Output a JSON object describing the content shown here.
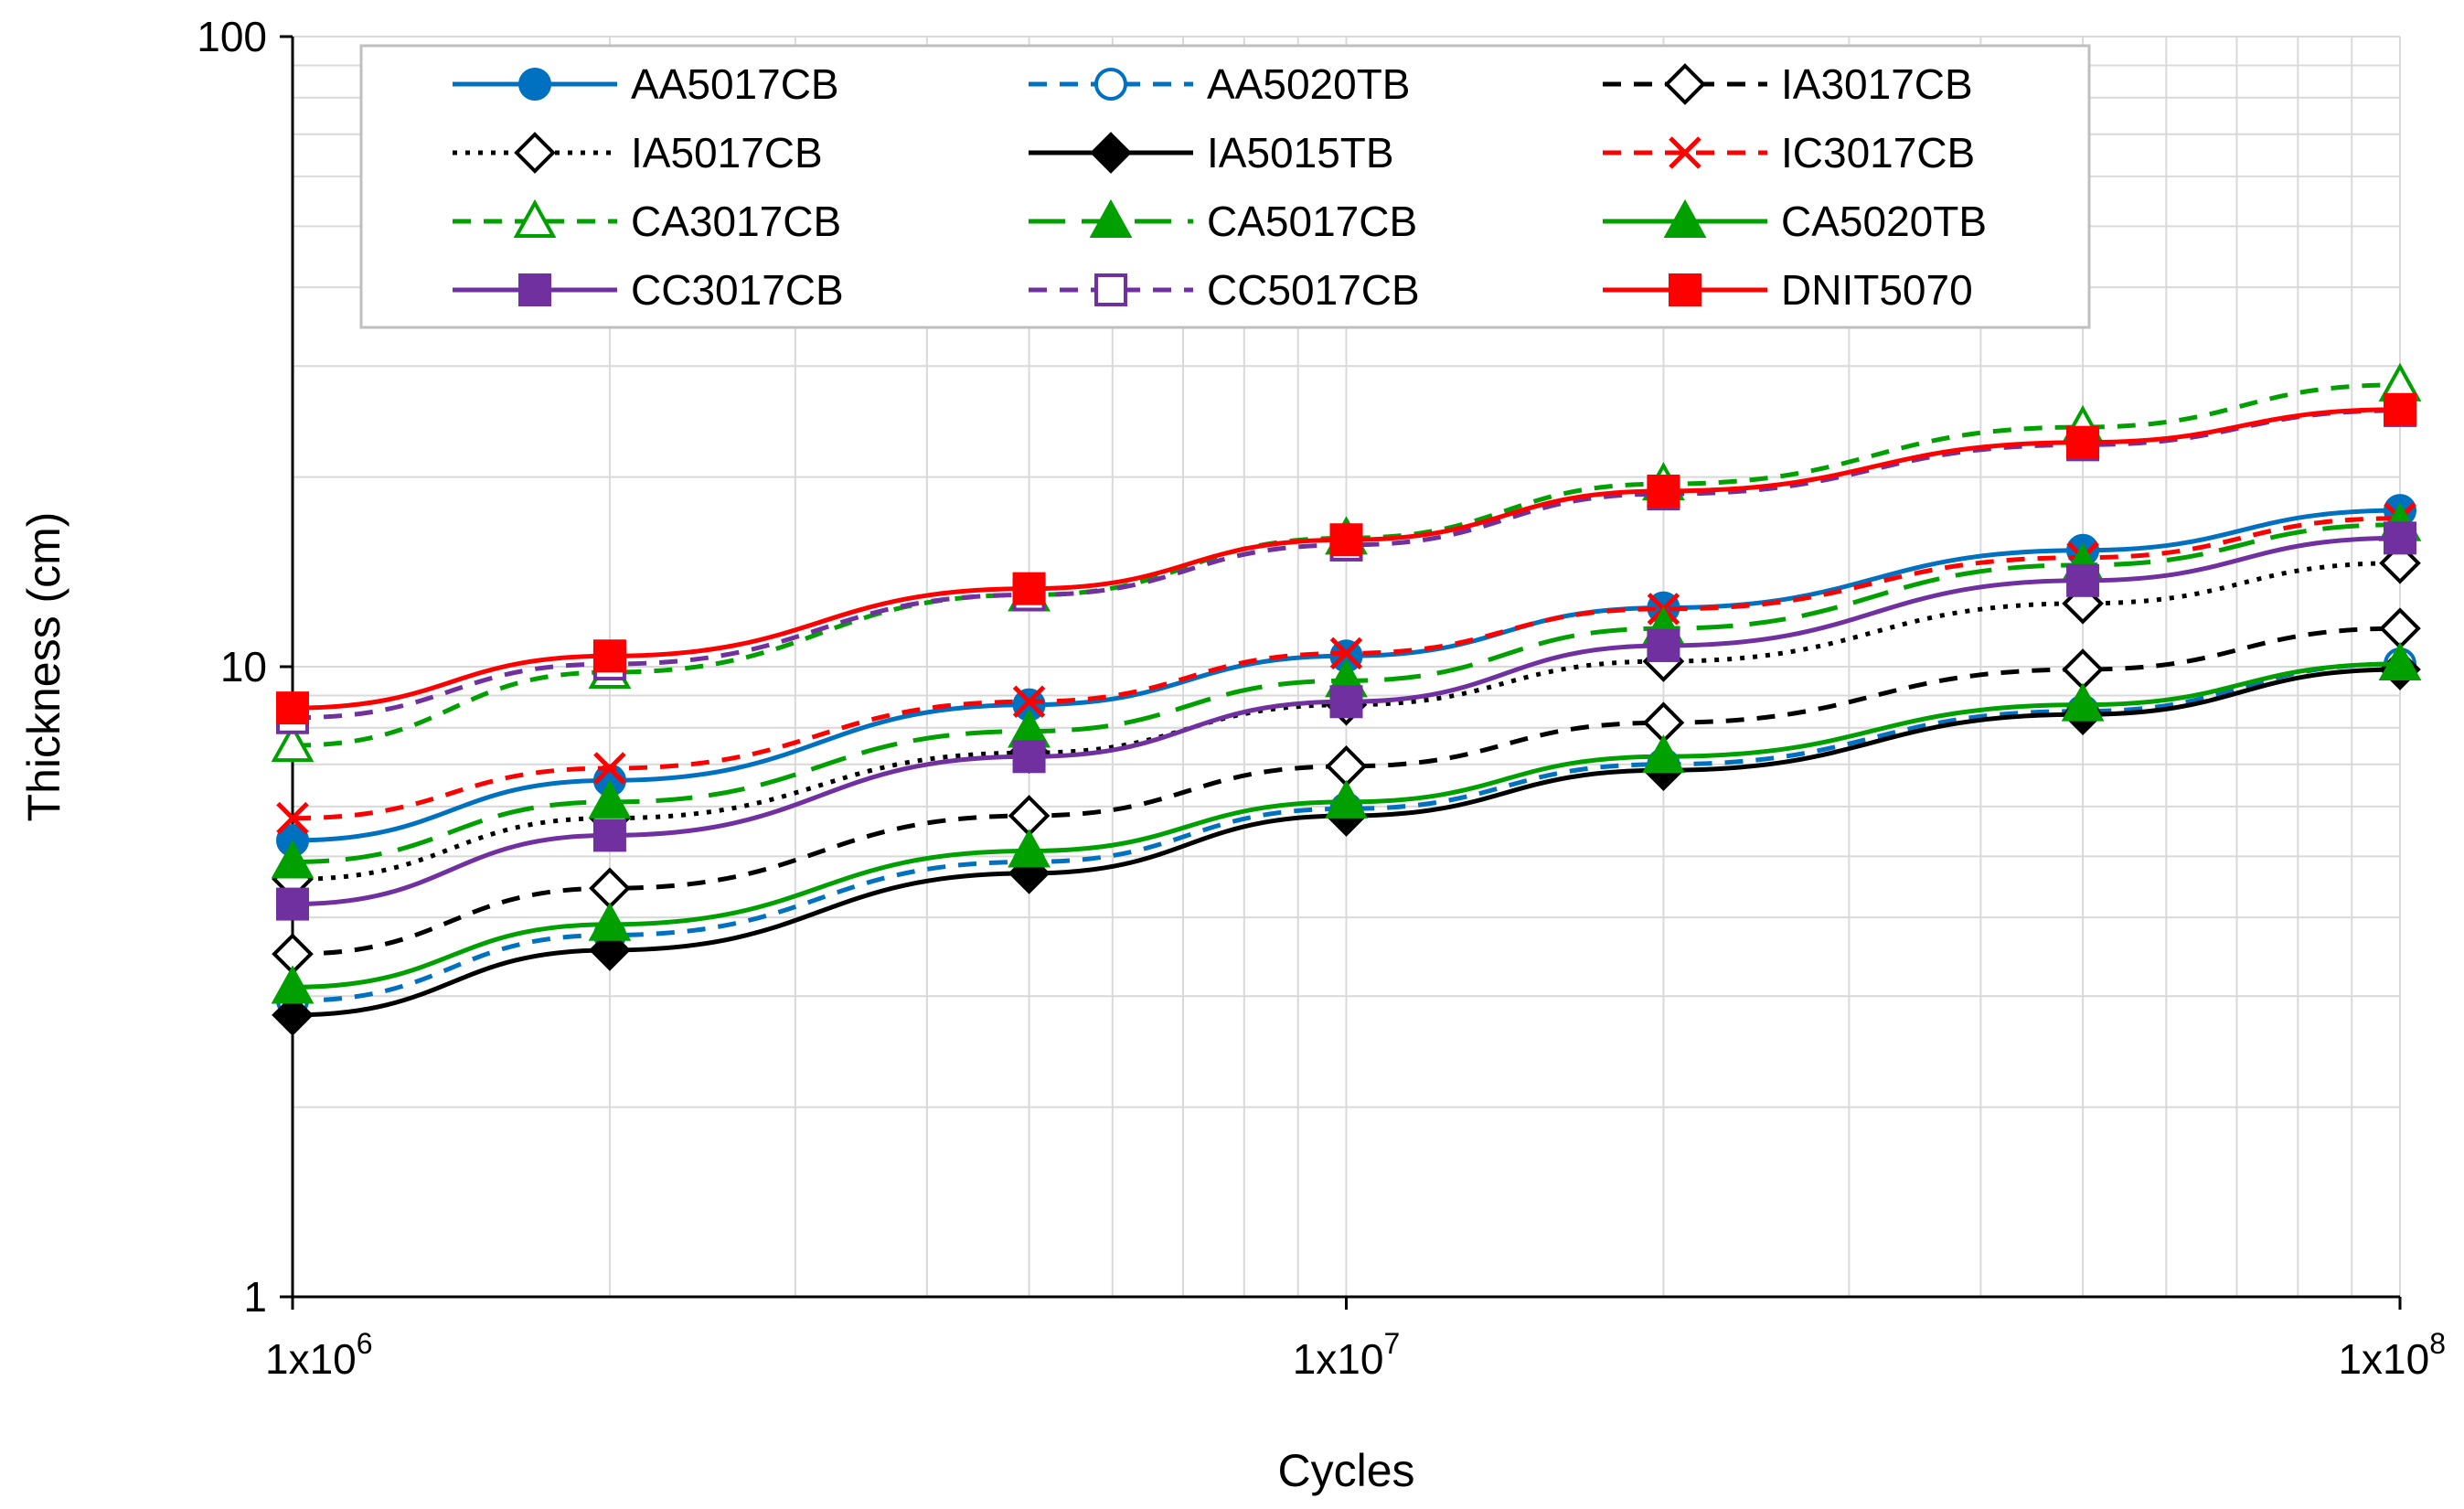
{
  "chart_data": {
    "type": "line",
    "xscale": "log",
    "yscale": "log",
    "x": [
      1000000,
      2000000,
      5000000,
      10000000,
      20000000,
      50000000,
      100000000
    ],
    "xlim": [
      1000000,
      100000000
    ],
    "ylim": [
      1,
      100
    ],
    "xlabel": "Cycles",
    "ylabel": "Thickness (cm)",
    "xticks": [
      {
        "value": 1000000,
        "base": "1x10",
        "exp": "6"
      },
      {
        "value": 10000000,
        "base": "1x10",
        "exp": "7"
      },
      {
        "value": 100000000,
        "base": "1x10",
        "exp": "8"
      }
    ],
    "yticks": [
      {
        "value": 1,
        "label": "1"
      },
      {
        "value": 10,
        "label": "10"
      },
      {
        "value": 100,
        "label": "100"
      }
    ],
    "grid": true,
    "legend_position": "top",
    "series": [
      {
        "name": "AA5017CB",
        "color": "#0070C0",
        "dash": "solid",
        "marker": "circle",
        "filled": true,
        "values": [
          5.3,
          6.6,
          8.7,
          10.4,
          12.4,
          15.3,
          17.7
        ]
      },
      {
        "name": "AA5020TB",
        "color": "#0070C0",
        "dash": "dashed",
        "marker": "circle",
        "filled": false,
        "values": [
          2.95,
          3.75,
          4.9,
          5.95,
          7.0,
          8.5,
          10.1
        ]
      },
      {
        "name": "IA3017CB",
        "color": "#000000",
        "dash": "dashed",
        "marker": "diamond",
        "filled": false,
        "values": [
          3.5,
          4.45,
          5.8,
          6.95,
          8.15,
          9.9,
          11.5
        ]
      },
      {
        "name": "IA5017CB",
        "color": "#000000",
        "dash": "dotted",
        "marker": "diamond",
        "filled": false,
        "values": [
          4.6,
          5.75,
          7.3,
          8.7,
          10.2,
          12.6,
          14.6
        ]
      },
      {
        "name": "IA5015TB",
        "color": "#000000",
        "dash": "solid",
        "marker": "diamond",
        "filled": true,
        "values": [
          2.8,
          3.55,
          4.7,
          5.8,
          6.85,
          8.4,
          9.9
        ]
      },
      {
        "name": "IC3017CB",
        "color": "#FF0000",
        "dash": "dashed",
        "marker": "x",
        "filled": false,
        "values": [
          5.75,
          6.9,
          8.8,
          10.5,
          12.35,
          14.9,
          17.2
        ]
      },
      {
        "name": "CA3017CB",
        "color": "#00A000",
        "dash": "dashed",
        "marker": "triangle",
        "filled": false,
        "values": [
          7.5,
          9.8,
          13.0,
          16.0,
          19.5,
          24.0,
          28.0
        ]
      },
      {
        "name": "CA5017CB",
        "color": "#00A000",
        "dash": "longdash",
        "marker": "triangle",
        "filled": true,
        "values": [
          4.9,
          6.1,
          7.9,
          9.5,
          11.5,
          14.5,
          16.8
        ]
      },
      {
        "name": "CA5020TB",
        "color": "#00A000",
        "dash": "solid",
        "marker": "triangle",
        "filled": true,
        "values": [
          3.1,
          3.9,
          5.1,
          6.1,
          7.2,
          8.7,
          10.1
        ]
      },
      {
        "name": "CC3017CB",
        "color": "#7030A0",
        "dash": "solid",
        "marker": "square",
        "filled": true,
        "values": [
          4.2,
          5.4,
          7.2,
          8.8,
          10.8,
          13.7,
          16.0
        ]
      },
      {
        "name": "CC5017CB",
        "color": "#7030A0",
        "dash": "dashed",
        "marker": "square",
        "filled": false,
        "values": [
          8.3,
          10.1,
          13.0,
          15.6,
          18.8,
          22.5,
          25.5
        ]
      },
      {
        "name": "DNIT5070",
        "color": "#FF0000",
        "dash": "solid",
        "marker": "square",
        "filled": true,
        "values": [
          8.6,
          10.4,
          13.3,
          15.9,
          19.0,
          22.7,
          25.6
        ]
      }
    ]
  }
}
